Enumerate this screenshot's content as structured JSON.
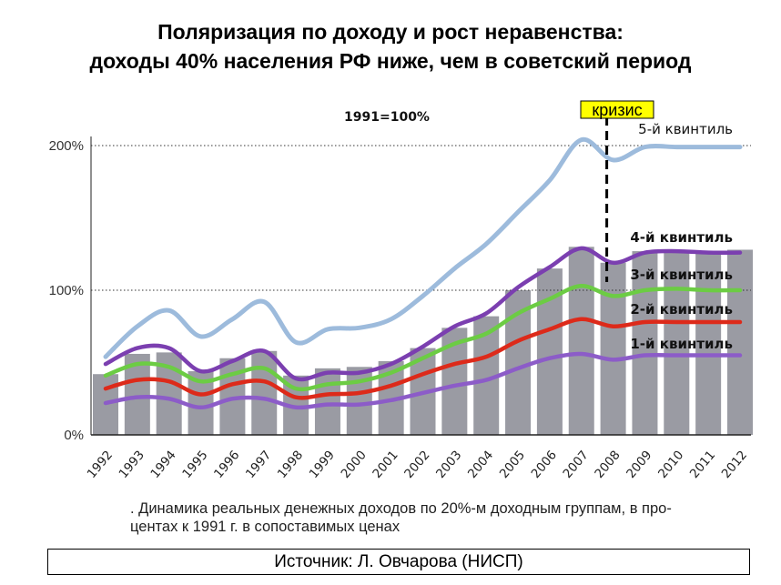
{
  "title_line1": "Поляризация по доходу и рост неравенства:",
  "title_line2": "доходы 40% населения РФ ниже, чем в советский период",
  "caption_line1": ". Динамика реальных денежных доходов по 20%-м доходным группам, в про-",
  "caption_line2": "центах к 1991 г. в сопоставимых ценах",
  "source": "Источник: Л. Овчарова (НИСП)",
  "chart_data": {
    "type": "bar+line",
    "subtitle": "1991=100%",
    "annotation": "кризис",
    "annotation_year": 2008,
    "annotation_color": "#ffff00",
    "ylim": [
      0,
      200
    ],
    "yticks": [
      0,
      100,
      200
    ],
    "ytick_labels": [
      "0%",
      "100%",
      "200%"
    ],
    "categories": [
      "1992",
      "1993",
      "1994",
      "1995",
      "1996",
      "1997",
      "1998",
      "1999",
      "2000",
      "2001",
      "2002",
      "2003",
      "2004",
      "2005",
      "2006",
      "2007",
      "2008",
      "2009",
      "2010",
      "2011",
      "2012"
    ],
    "bars": {
      "color": "#9a9ba3",
      "values": [
        42,
        56,
        57,
        44,
        53,
        58,
        41,
        46,
        47,
        51,
        60,
        74,
        82,
        100,
        115,
        130,
        119,
        127,
        127,
        127,
        128
      ]
    },
    "series": [
      {
        "name": "5-й квинтиль",
        "color": "#9dbbdc",
        "values": [
          54,
          75,
          86,
          68,
          80,
          92,
          64,
          73,
          74,
          80,
          96,
          115,
          132,
          154,
          176,
          204,
          190,
          199,
          199,
          199,
          199
        ]
      },
      {
        "name": "4-й квинтиль",
        "color": "#7b3fb0",
        "values": [
          49,
          60,
          60,
          44,
          51,
          58,
          39,
          43,
          43,
          49,
          61,
          75,
          84,
          102,
          116,
          129,
          119,
          126,
          127,
          126,
          126
        ]
      },
      {
        "name": "3-й квинтиль",
        "color": "#6ccc44",
        "values": [
          41,
          49,
          47,
          37,
          42,
          46,
          32,
          35,
          37,
          43,
          53,
          63,
          70,
          84,
          94,
          103,
          96,
          100,
          101,
          100,
          100
        ]
      },
      {
        "name": "2-й квинтиль",
        "color": "#dd2a1a",
        "values": [
          32,
          38,
          37,
          28,
          35,
          37,
          26,
          28,
          29,
          34,
          42,
          49,
          54,
          65,
          73,
          80,
          75,
          78,
          78,
          78,
          78
        ]
      },
      {
        "name": "1-й квинтиль",
        "color": "#8c5cc8",
        "values": [
          22,
          26,
          25,
          19,
          25,
          25,
          19,
          21,
          21,
          24,
          29,
          34,
          38,
          46,
          53,
          56,
          52,
          55,
          55,
          55,
          55
        ]
      }
    ]
  }
}
